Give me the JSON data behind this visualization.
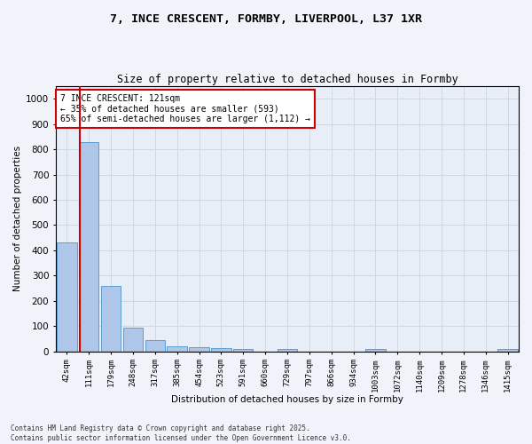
{
  "title_line1": "7, INCE CRESCENT, FORMBY, LIVERPOOL, L37 1XR",
  "title_line2": "Size of property relative to detached houses in Formby",
  "xlabel": "Distribution of detached houses by size in Formby",
  "ylabel": "Number of detached properties",
  "categories": [
    "42sqm",
    "111sqm",
    "179sqm",
    "248sqm",
    "317sqm",
    "385sqm",
    "454sqm",
    "523sqm",
    "591sqm",
    "660sqm",
    "729sqm",
    "797sqm",
    "866sqm",
    "934sqm",
    "1003sqm",
    "1072sqm",
    "1140sqm",
    "1209sqm",
    "1278sqm",
    "1346sqm",
    "1415sqm"
  ],
  "values": [
    430,
    830,
    260,
    95,
    45,
    20,
    15,
    12,
    10,
    0,
    10,
    0,
    0,
    0,
    10,
    0,
    0,
    0,
    0,
    0,
    8
  ],
  "bar_color": "#aec6e8",
  "bar_edge_color": "#5a9fd4",
  "vline_x_index": 1,
  "vline_color": "#cc0000",
  "annotation_text": "7 INCE CRESCENT: 121sqm\n← 35% of detached houses are smaller (593)\n65% of semi-detached houses are larger (1,112) →",
  "annotation_box_color": "#ffffff",
  "annotation_border_color": "#cc0000",
  "ylim": [
    0,
    1050
  ],
  "yticks": [
    0,
    100,
    200,
    300,
    400,
    500,
    600,
    700,
    800,
    900,
    1000
  ],
  "grid_color": "#d0d8e8",
  "background_color": "#e8eef8",
  "fig_background_color": "#f0f4fa",
  "footer_line1": "Contains HM Land Registry data © Crown copyright and database right 2025.",
  "footer_line2": "Contains public sector information licensed under the Open Government Licence v3.0."
}
